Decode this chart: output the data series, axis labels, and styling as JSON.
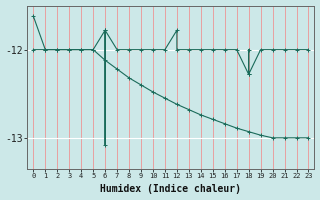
{
  "xlabel": "Humidex (Indice chaleur)",
  "bg_color": "#cce8e8",
  "line_color": "#1a6b5a",
  "vgrid_color": "#e8a0a0",
  "hgrid_color": "#ffffff",
  "xlim": [
    -0.5,
    23.5
  ],
  "ylim": [
    -13.35,
    -11.5
  ],
  "yticks": [
    -13,
    -12
  ],
  "xticks": [
    0,
    1,
    2,
    3,
    4,
    5,
    6,
    7,
    8,
    9,
    10,
    11,
    12,
    13,
    14,
    15,
    16,
    17,
    18,
    19,
    20,
    21,
    22,
    23
  ],
  "series1_x": [
    0,
    1,
    2,
    3,
    4,
    5,
    6,
    6,
    6,
    7,
    8,
    9,
    10,
    11,
    12,
    12,
    13,
    14,
    15,
    16,
    17,
    18,
    18,
    18,
    19,
    20,
    21,
    22,
    23
  ],
  "series1_y": [
    -11.62,
    -12,
    -12,
    -12,
    -12,
    -12,
    -11.78,
    -13.08,
    -11.78,
    -12,
    -12,
    -12,
    -12,
    -12,
    -11.78,
    -12,
    -12,
    -12,
    -12,
    -12,
    -12,
    -12.28,
    -12.0,
    -12.28,
    -12,
    -12,
    -12,
    -12,
    -12
  ],
  "series2_x": [
    0,
    1,
    2,
    3,
    4,
    5,
    6,
    7,
    8,
    9,
    10,
    11,
    12,
    13,
    14,
    15,
    16,
    17,
    18,
    19,
    20,
    21,
    22,
    23
  ],
  "series2_y": [
    -12,
    -12,
    -12,
    -12,
    -12,
    -12,
    -12.12,
    -12.22,
    -12.32,
    -12.4,
    -12.48,
    -12.55,
    -12.62,
    -12.68,
    -12.74,
    -12.79,
    -12.84,
    -12.89,
    -12.93,
    -12.97,
    -13.0,
    -13.0,
    -13.0,
    -13.0
  ],
  "marker_size": 2.5,
  "linewidth": 0.8
}
